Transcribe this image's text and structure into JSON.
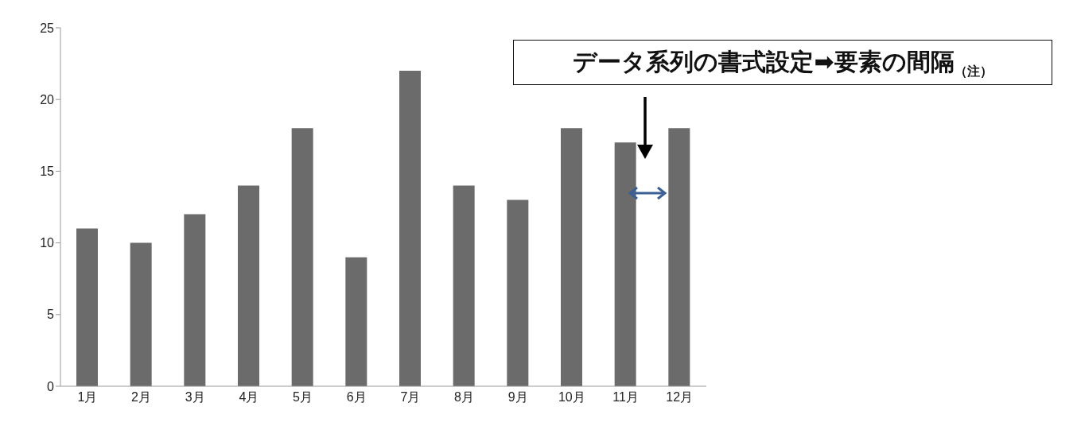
{
  "chart_data": {
    "type": "bar",
    "categories": [
      "1月",
      "2月",
      "3月",
      "4月",
      "5月",
      "6月",
      "7月",
      "8月",
      "9月",
      "10月",
      "11月",
      "12月"
    ],
    "values": [
      11,
      10,
      12,
      14,
      18,
      9,
      22,
      14,
      13,
      18,
      17,
      18
    ],
    "color": "#6b6b6b",
    "ylim": [
      0,
      25
    ],
    "yticks": [
      0,
      5,
      10,
      15,
      20,
      25
    ],
    "grid": false,
    "annotations": [
      "データ系列の書式設定➡要素の間隔$_{（注）}$"
    ]
  }
}
